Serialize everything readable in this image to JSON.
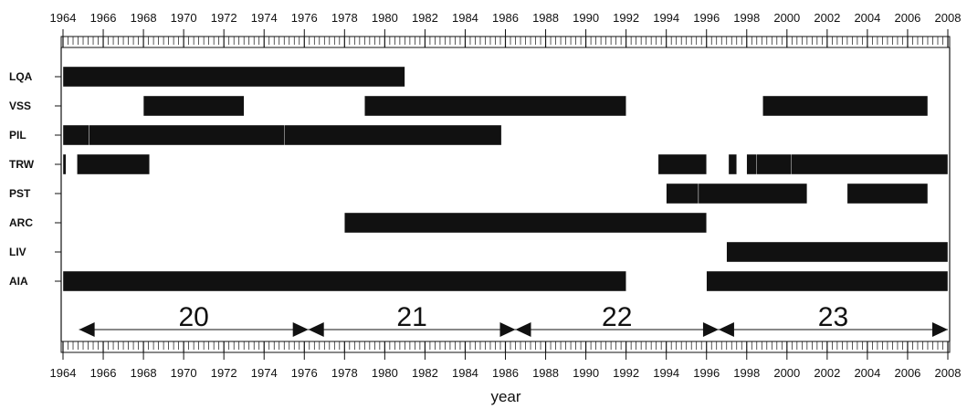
{
  "chart_data": {
    "type": "bar",
    "subtype": "gantt",
    "title": "",
    "xlabel": "year",
    "ylabel": "",
    "xlim": [
      1964,
      2008
    ],
    "x_tick_labels": [
      "1964",
      "1966",
      "1968",
      "1970",
      "1972",
      "1974",
      "1976",
      "1978",
      "1980",
      "1982",
      "1984",
      "1986",
      "1988",
      "1990",
      "1992",
      "1994",
      "1996",
      "1998",
      "2000",
      "2002",
      "2004",
      "2006",
      "2008"
    ],
    "x_tick_values": [
      1964,
      1966,
      1968,
      1970,
      1972,
      1974,
      1976,
      1978,
      1980,
      1982,
      1984,
      1986,
      1988,
      1990,
      1992,
      1994,
      1996,
      1998,
      2000,
      2002,
      2004,
      2006,
      2008
    ],
    "x_axis_top_and_bottom": true,
    "grid": false,
    "categories": [
      "LQA",
      "VSS",
      "PIL",
      "TRW",
      "PST",
      "ARC",
      "LIV",
      "AIA"
    ],
    "series": [
      {
        "category": "LQA",
        "intervals": [
          [
            1964.0,
            1981.0
          ]
        ]
      },
      {
        "category": "VSS",
        "intervals": [
          [
            1968.0,
            1973.0
          ],
          [
            1979.0,
            1992.0
          ],
          [
            1998.8,
            2007.0
          ]
        ]
      },
      {
        "category": "PIL",
        "intervals": [
          [
            1964.0,
            1965.3
          ],
          [
            1965.3,
            1975.0
          ],
          [
            1975.0,
            1985.8
          ]
        ]
      },
      {
        "category": "TRW",
        "intervals": [
          [
            1964.0,
            1964.15
          ],
          [
            1964.7,
            1968.3
          ],
          [
            1993.6,
            1996.0
          ],
          [
            1997.1,
            1997.5
          ],
          [
            1998.0,
            1998.5
          ],
          [
            1998.5,
            2000.2
          ],
          [
            2000.2,
            2008.0
          ]
        ]
      },
      {
        "category": "PST",
        "intervals": [
          [
            1994.0,
            1995.6
          ],
          [
            1995.6,
            2001.0
          ],
          [
            2003.0,
            2007.0
          ]
        ]
      },
      {
        "category": "ARC",
        "intervals": [
          [
            1978.0,
            1996.0
          ]
        ]
      },
      {
        "category": "LIV",
        "intervals": [
          [
            1997.0,
            2008.0
          ]
        ]
      },
      {
        "category": "AIA",
        "intervals": [
          [
            1964.0,
            1992.0
          ],
          [
            1996.0,
            2008.0
          ]
        ]
      }
    ],
    "cycles": [
      {
        "label": "20",
        "start": 1964.8,
        "end": 1976.2
      },
      {
        "label": "21",
        "start": 1976.2,
        "end": 1986.5
      },
      {
        "label": "22",
        "start": 1986.5,
        "end": 1996.6
      },
      {
        "label": "23",
        "start": 1996.6,
        "end": 2008.0
      }
    ],
    "colors": {
      "bar": "#111111",
      "axis": "#111111",
      "background": "#ffffff"
    }
  }
}
